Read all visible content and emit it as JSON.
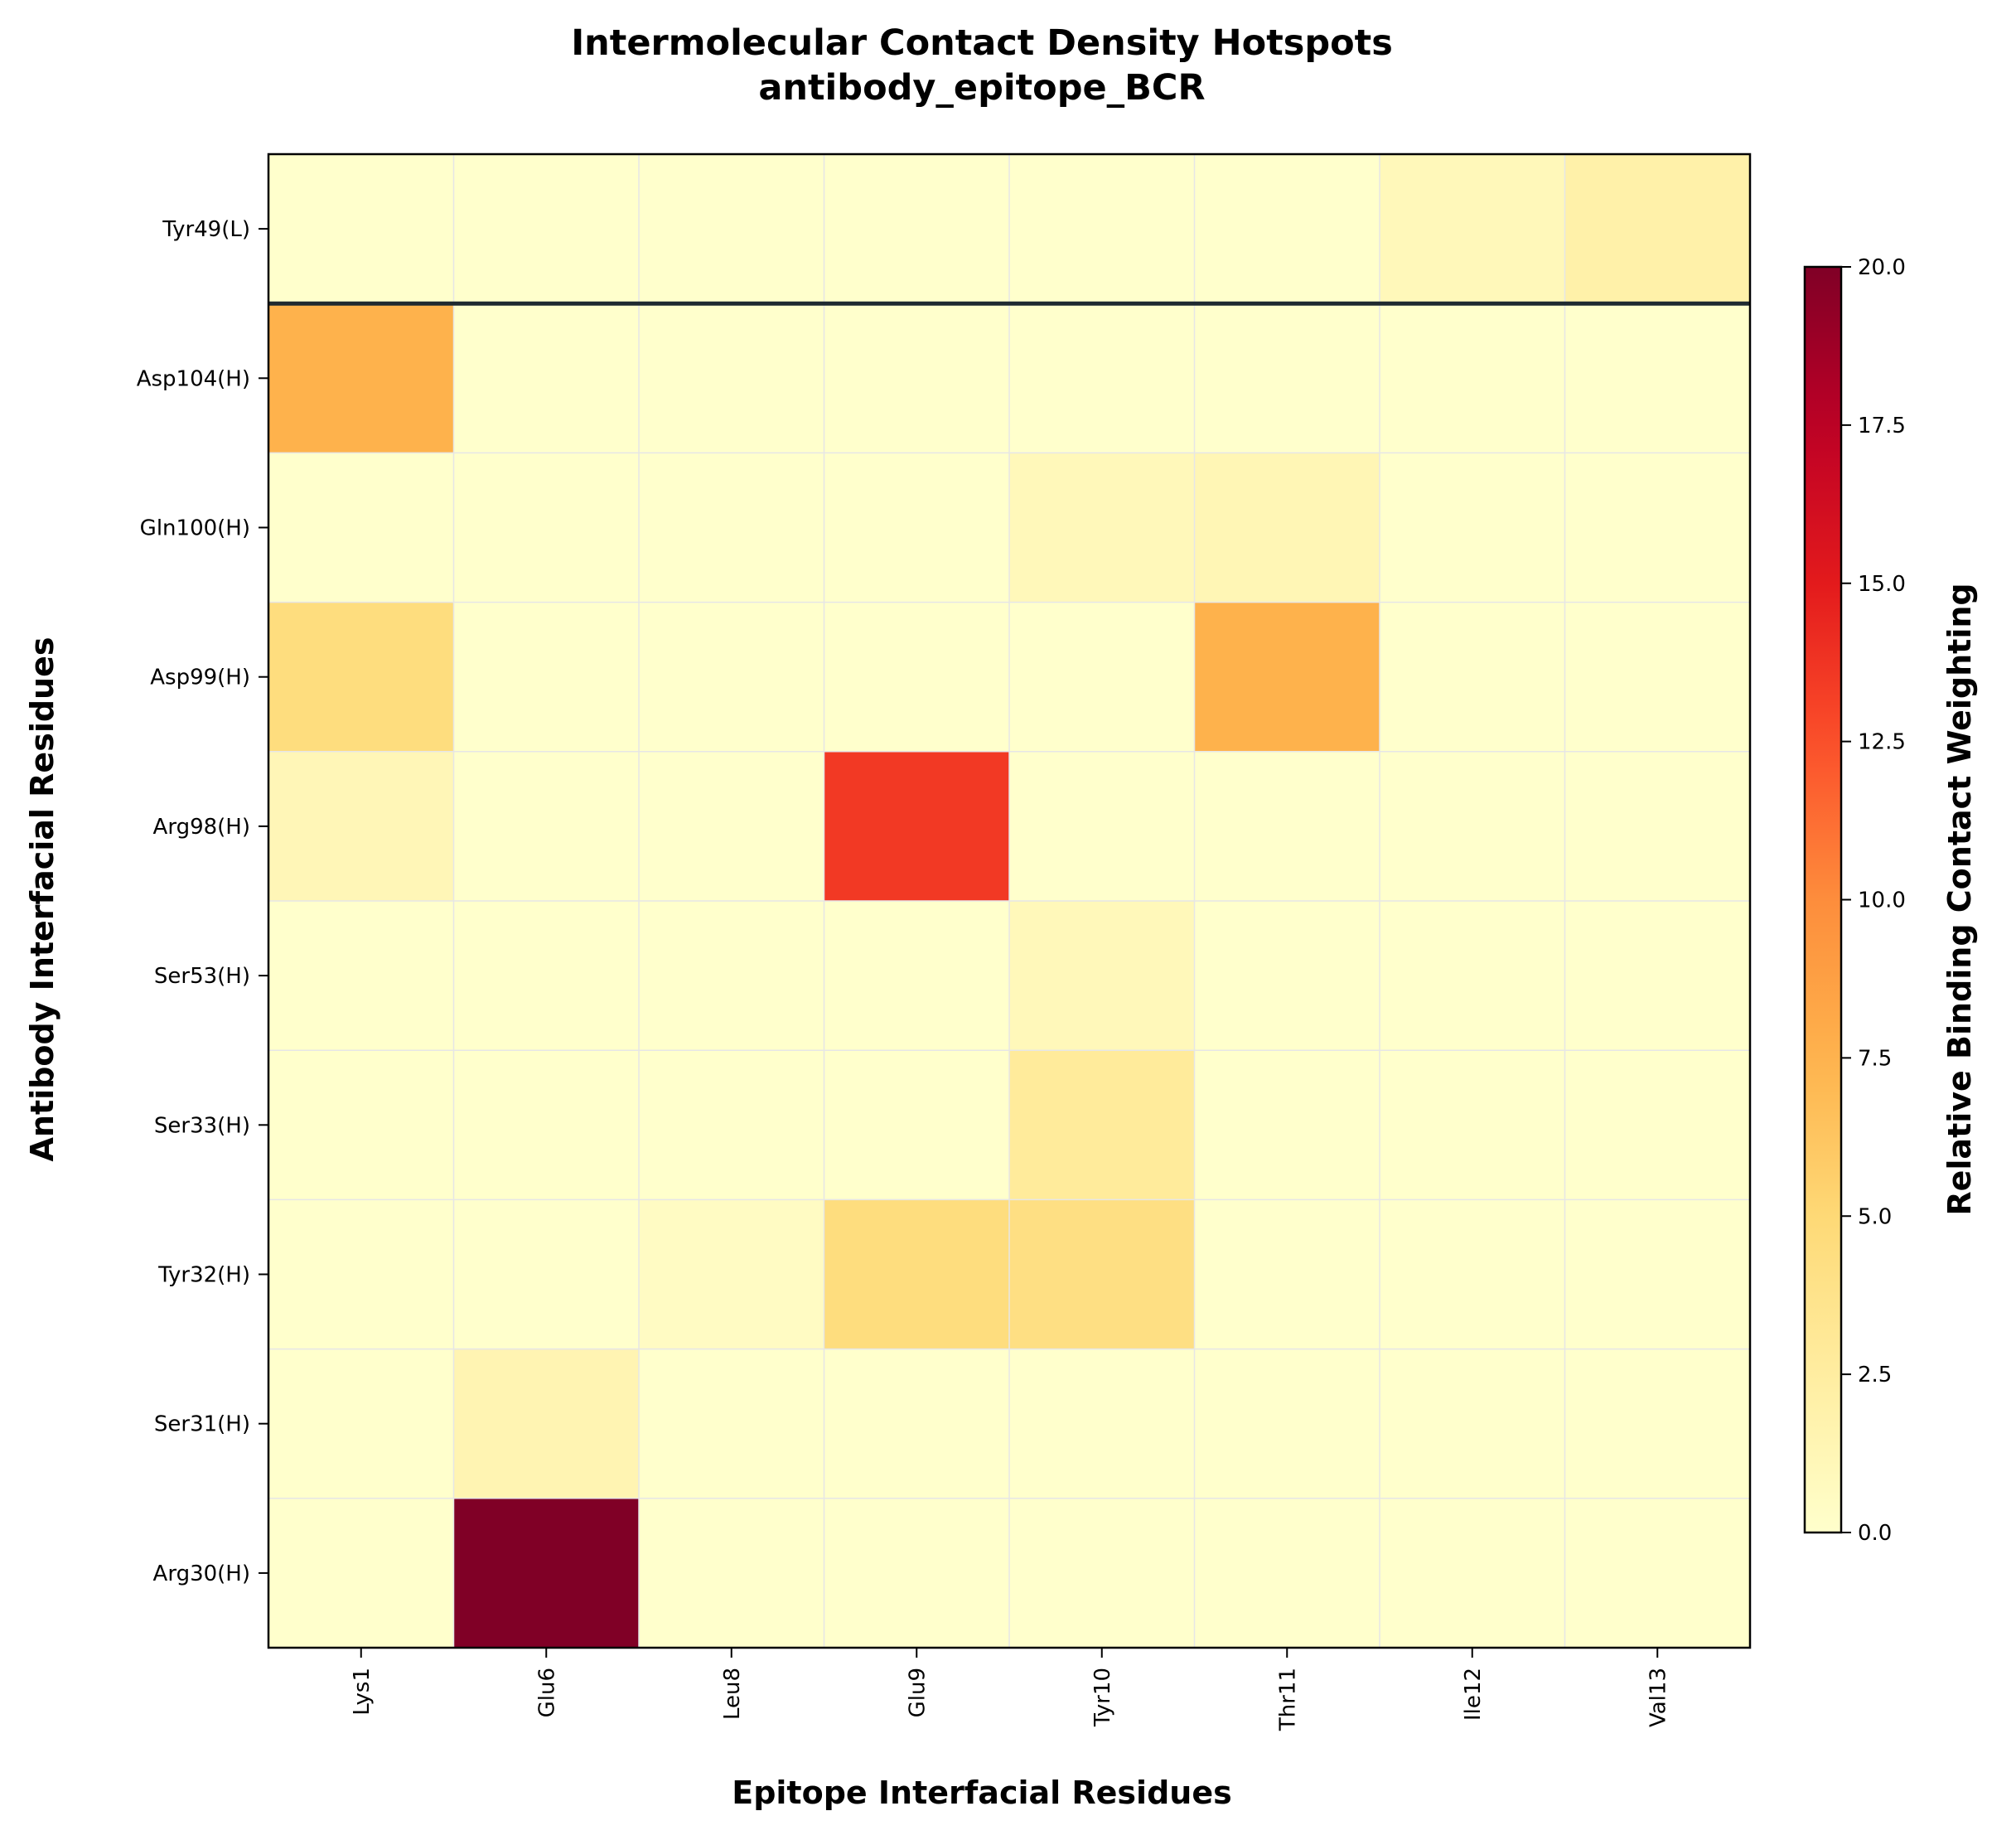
{
  "chart_data": {
    "type": "heatmap",
    "title": "Intermolecular Contact Density Hotspots",
    "subtitle": "antibody_epitope_BCR",
    "xlabel": "Epitope Interfacial Residues",
    "ylabel": "Antibody Interfacial Residues",
    "x_categories": [
      "Lys1",
      "Glu6",
      "Leu8",
      "Glu9",
      "Tyr10",
      "Thr11",
      "Ile12",
      "Val13"
    ],
    "y_categories": [
      "Tyr49(L)",
      "Asp104(H)",
      "Gln100(H)",
      "Asp99(H)",
      "Arg98(H)",
      "Ser53(H)",
      "Ser33(H)",
      "Tyr32(H)",
      "Ser31(H)",
      "Arg30(H)"
    ],
    "values": [
      [
        0,
        0,
        0,
        0,
        0,
        0,
        1.0,
        2.0
      ],
      [
        7.5,
        0,
        0,
        0,
        0,
        0,
        0,
        0
      ],
      [
        0,
        0,
        0,
        0,
        1.0,
        1.3,
        0,
        0
      ],
      [
        4.5,
        0,
        0,
        0,
        0,
        7.5,
        0,
        0
      ],
      [
        1.2,
        0,
        0,
        13.5,
        0,
        0,
        0,
        0
      ],
      [
        0,
        0,
        0,
        0,
        1.0,
        0,
        0,
        0
      ],
      [
        0,
        0,
        0,
        0,
        2.8,
        0,
        0,
        0
      ],
      [
        0,
        0,
        0.5,
        4.5,
        4.2,
        0,
        0,
        0
      ],
      [
        0,
        1.5,
        0,
        0,
        0,
        0,
        0,
        0
      ],
      [
        0,
        20,
        0,
        0,
        0,
        0,
        0,
        0
      ]
    ],
    "colorbar": {
      "label": "Relative Binding Contact Weighting",
      "range": [
        0,
        20
      ],
      "ticks": [
        "0.0",
        "2.5",
        "5.0",
        "7.5",
        "10.0",
        "12.5",
        "15.0",
        "17.5",
        "20.0"
      ],
      "colormap": "YlOrRd"
    },
    "separator_after_row": 0,
    "gridlines": true
  }
}
